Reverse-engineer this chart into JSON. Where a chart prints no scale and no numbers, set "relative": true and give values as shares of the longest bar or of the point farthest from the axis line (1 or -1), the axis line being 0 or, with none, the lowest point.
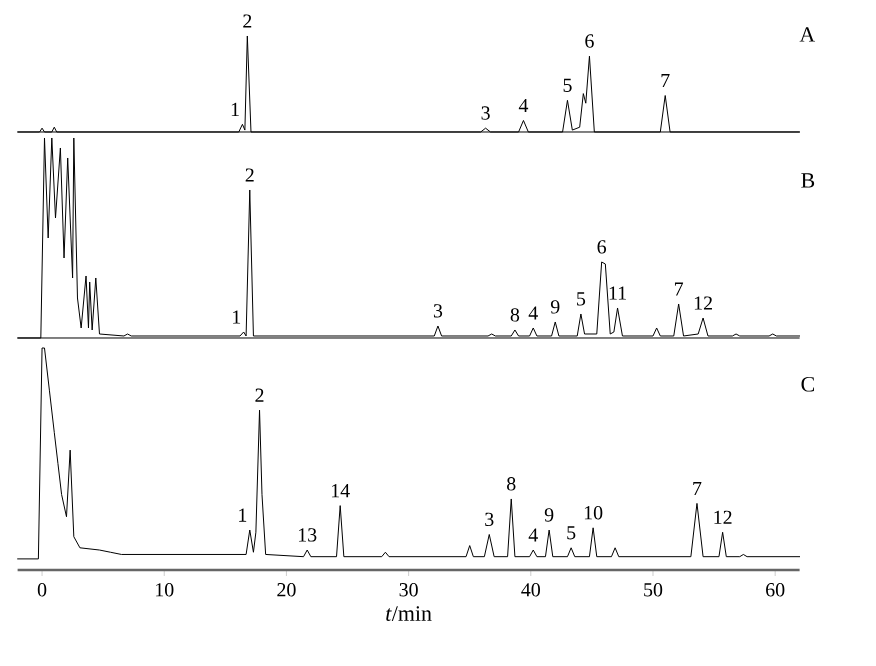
{
  "chart_data": [
    {
      "type": "line",
      "relative": true,
      "xlim": [
        -2,
        62
      ],
      "tick_labels": false,
      "series": [
        {
          "color": "#000000",
          "x": [
            -2,
            -0.2,
            0,
            0.2,
            0.8,
            1,
            1.2,
            16.1,
            16.4,
            16.6,
            16.8,
            17.1,
            35.9,
            36.3,
            36.7,
            39.0,
            39.4,
            39.8,
            42.6,
            43.0,
            43.4,
            44.0,
            44.3,
            44.5,
            44.8,
            45.2,
            50.6,
            51.0,
            51.4,
            62
          ],
          "values": [
            0,
            0,
            0.04,
            0,
            0,
            0.05,
            0,
            0,
            0.08,
            0.02,
            1.0,
            0,
            0,
            0.04,
            0,
            0,
            0.12,
            0,
            0,
            0.33,
            0.02,
            0.05,
            0.4,
            0.3,
            0.79,
            0,
            0,
            0.38,
            0,
            0
          ]
        }
      ],
      "annotations": [
        "A",
        {
          "text": "1",
          "x": 16.4,
          "y": 0.08
        },
        {
          "text": "2",
          "x": 16.8,
          "y": 1.0
        },
        {
          "text": "3",
          "x": 36.3,
          "y": 0.04
        },
        {
          "text": "4",
          "x": 39.4,
          "y": 0.12
        },
        {
          "text": "5",
          "x": 43.0,
          "y": 0.33
        },
        {
          "text": "6",
          "x": 44.8,
          "y": 0.79
        },
        {
          "text": "7",
          "x": 51.0,
          "y": 0.38
        }
      ]
    },
    {
      "type": "line",
      "relative": true,
      "xlim": [
        -2,
        62
      ],
      "tick_labels": false,
      "series": [
        {
          "color": "#000000",
          "x": [
            -2,
            -0.1,
            0.2,
            0.5,
            0.8,
            1.1,
            1.5,
            1.8,
            2.1,
            2.5,
            2.6,
            2.9,
            3.2,
            3.6,
            3.8,
            3.9,
            4.1,
            4.4,
            4.7,
            6.7,
            7.0,
            7.3,
            16.2,
            16.5,
            16.7,
            17.0,
            17.3,
            32.1,
            32.4,
            32.7,
            36.5,
            36.8,
            37.1,
            38.4,
            38.7,
            39.0,
            39.9,
            40.2,
            40.5,
            41.7,
            42.0,
            42.3,
            43.8,
            44.1,
            44.4,
            45.4,
            45.8,
            46.1,
            46.5,
            46.8,
            47.1,
            47.5,
            50.0,
            50.3,
            50.6,
            51.7,
            52.1,
            52.5,
            53.7,
            54.1,
            54.5,
            56.5,
            56.8,
            57.1,
            59.5,
            59.8,
            60.1,
            62
          ],
          "values": [
            0,
            0,
            1.0,
            0.5,
            1.0,
            0.6,
            0.95,
            0.4,
            0.9,
            0.3,
            1.0,
            0.2,
            0.05,
            0.31,
            0.05,
            0.28,
            0.04,
            0.3,
            0.02,
            0.01,
            0.02,
            0.01,
            0.01,
            0.03,
            0.01,
            0.74,
            0.01,
            0.01,
            0.06,
            0.01,
            0.01,
            0.02,
            0.01,
            0.01,
            0.04,
            0.01,
            0.01,
            0.05,
            0.01,
            0.01,
            0.08,
            0.01,
            0.01,
            0.12,
            0.02,
            0.02,
            0.38,
            0.37,
            0.02,
            0.03,
            0.15,
            0.01,
            0.01,
            0.05,
            0.01,
            0.01,
            0.17,
            0.01,
            0.02,
            0.1,
            0.01,
            0.01,
            0.02,
            0.01,
            0.01,
            0.02,
            0.01,
            0.01
          ]
        }
      ],
      "annotations": [
        "B",
        {
          "text": "1",
          "x": 16.5,
          "y": 0.03
        },
        {
          "text": "2",
          "x": 17.0,
          "y": 0.74
        },
        {
          "text": "3",
          "x": 32.4,
          "y": 0.06
        },
        {
          "text": "8",
          "x": 38.7,
          "y": 0.04
        },
        {
          "text": "4",
          "x": 40.2,
          "y": 0.05
        },
        {
          "text": "9",
          "x": 42.0,
          "y": 0.08
        },
        {
          "text": "5",
          "x": 44.1,
          "y": 0.12
        },
        {
          "text": "6",
          "x": 45.8,
          "y": 0.38
        },
        {
          "text": "11",
          "x": 47.1,
          "y": 0.15
        },
        {
          "text": "7",
          "x": 52.1,
          "y": 0.17
        },
        {
          "text": "12",
          "x": 54.1,
          "y": 0.1
        }
      ]
    },
    {
      "type": "line",
      "relative": true,
      "xlim": [
        -2,
        62
      ],
      "xticks": [
        0,
        10,
        20,
        30,
        40,
        50,
        60
      ],
      "tick_labels": "x",
      "xlabel": "*t*/min",
      "series": [
        {
          "color": "#000000",
          "x": [
            -2,
            -0.3,
            0,
            0.2,
            0.6,
            1.0,
            1.3,
            1.6,
            2.0,
            2.3,
            2.6,
            3.1,
            4.7,
            5.6,
            6.5,
            16.7,
            17.0,
            17.3,
            17.5,
            17.8,
            18.0,
            18.3,
            21.4,
            21.7,
            22.0,
            24.1,
            24.4,
            24.7,
            27.8,
            28.1,
            28.4,
            34.7,
            35.0,
            35.3,
            36.2,
            36.6,
            37.0,
            38.1,
            38.4,
            38.7,
            39.9,
            40.2,
            40.5,
            41.2,
            41.5,
            41.8,
            43.0,
            43.3,
            43.6,
            44.8,
            45.1,
            45.4,
            46.6,
            46.9,
            47.2,
            53.1,
            53.6,
            54.1,
            55.4,
            55.7,
            56.0,
            57.1,
            57.4,
            57.7,
            62
          ],
          "values": [
            0.05,
            0.05,
            1.0,
            1.0,
            0.81,
            0.62,
            0.48,
            0.34,
            0.24,
            0.54,
            0.15,
            0.1,
            0.09,
            0.08,
            0.07,
            0.07,
            0.18,
            0.08,
            0.17,
            0.72,
            0.34,
            0.07,
            0.06,
            0.09,
            0.06,
            0.06,
            0.29,
            0.06,
            0.06,
            0.08,
            0.06,
            0.06,
            0.11,
            0.06,
            0.06,
            0.16,
            0.06,
            0.06,
            0.32,
            0.06,
            0.06,
            0.09,
            0.06,
            0.06,
            0.18,
            0.06,
            0.06,
            0.1,
            0.06,
            0.06,
            0.19,
            0.06,
            0.06,
            0.1,
            0.06,
            0.06,
            0.3,
            0.06,
            0.06,
            0.17,
            0.06,
            0.06,
            0.07,
            0.06,
            0.06
          ]
        }
      ],
      "annotations": [
        "C",
        {
          "text": "1",
          "x": 17.0,
          "y": 0.18
        },
        {
          "text": "2",
          "x": 17.8,
          "y": 0.72
        },
        {
          "text": "13",
          "x": 21.7,
          "y": 0.09
        },
        {
          "text": "14",
          "x": 24.4,
          "y": 0.29
        },
        {
          "text": "3",
          "x": 36.6,
          "y": 0.16
        },
        {
          "text": "8",
          "x": 38.4,
          "y": 0.32
        },
        {
          "text": "4",
          "x": 40.2,
          "y": 0.09
        },
        {
          "text": "9",
          "x": 41.5,
          "y": 0.18
        },
        {
          "text": "5",
          "x": 43.3,
          "y": 0.1
        },
        {
          "text": "10",
          "x": 45.1,
          "y": 0.19
        },
        {
          "text": "7",
          "x": 53.6,
          "y": 0.3
        },
        {
          "text": "12",
          "x": 55.7,
          "y": 0.17
        }
      ]
    }
  ]
}
